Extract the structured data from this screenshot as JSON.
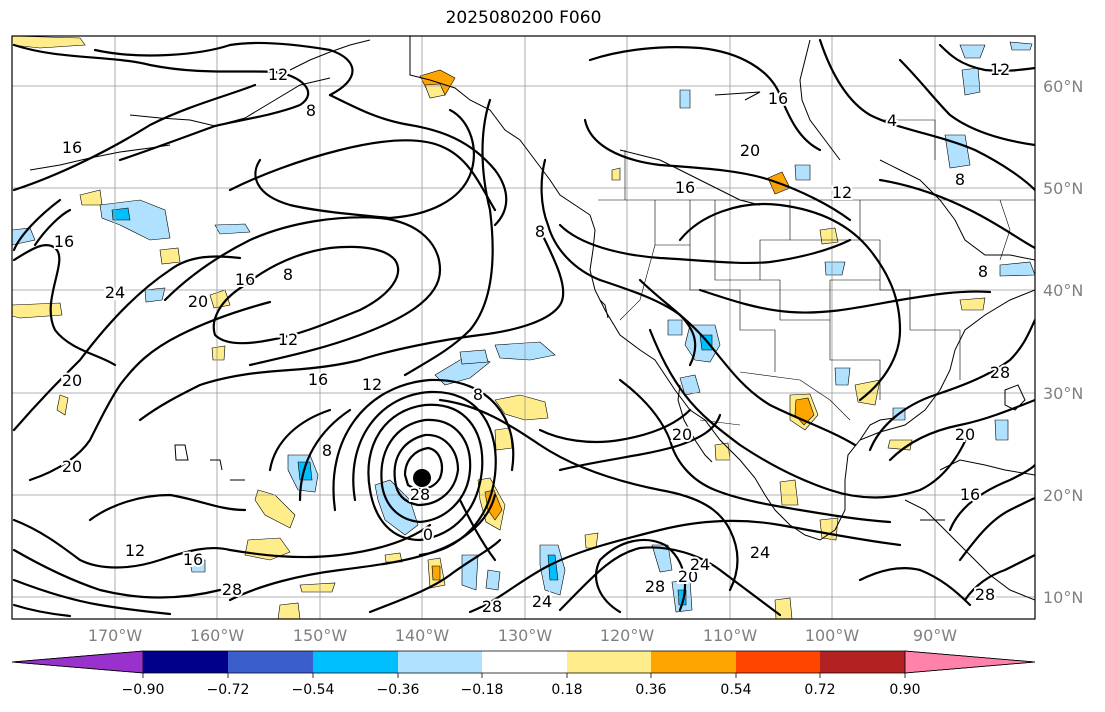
{
  "title": "2025080200 F060",
  "map": {
    "lat_labels": [
      "60°N",
      "50°N",
      "40°N",
      "30°N",
      "20°N",
      "10°N"
    ],
    "lon_labels": [
      "170°W",
      "160°W",
      "150°W",
      "140°W",
      "130°W",
      "120°W",
      "110°W",
      "100°W",
      "90°W"
    ],
    "contour_labels": [
      "12",
      "8",
      "16",
      "16",
      "20",
      "16",
      "12",
      "8",
      "24",
      "16",
      "20",
      "8",
      "12",
      "16",
      "12",
      "20",
      "8",
      "20",
      "8",
      "28",
      "0",
      "12",
      "16",
      "28",
      "28",
      "24",
      "20",
      "24",
      "24",
      "20",
      "28",
      "20",
      "28",
      "16",
      "28",
      "8",
      "4",
      "8",
      "16",
      "12"
    ],
    "storm_marker": "storm-center"
  },
  "colorbar": {
    "tick_labels": [
      "−0.90",
      "−0.72",
      "−0.54",
      "−0.36",
      "−0.18",
      "0.18",
      "0.36",
      "0.54",
      "0.72",
      "0.90"
    ],
    "colors": [
      "#9932CC",
      "#00008B",
      "#3A5FCD",
      "#00BFFF",
      "#B0E2FF",
      "#FFFFFF",
      "#FFEC8B",
      "#FFA500",
      "#FF4500",
      "#B22222",
      "#FF82AB"
    ]
  }
}
